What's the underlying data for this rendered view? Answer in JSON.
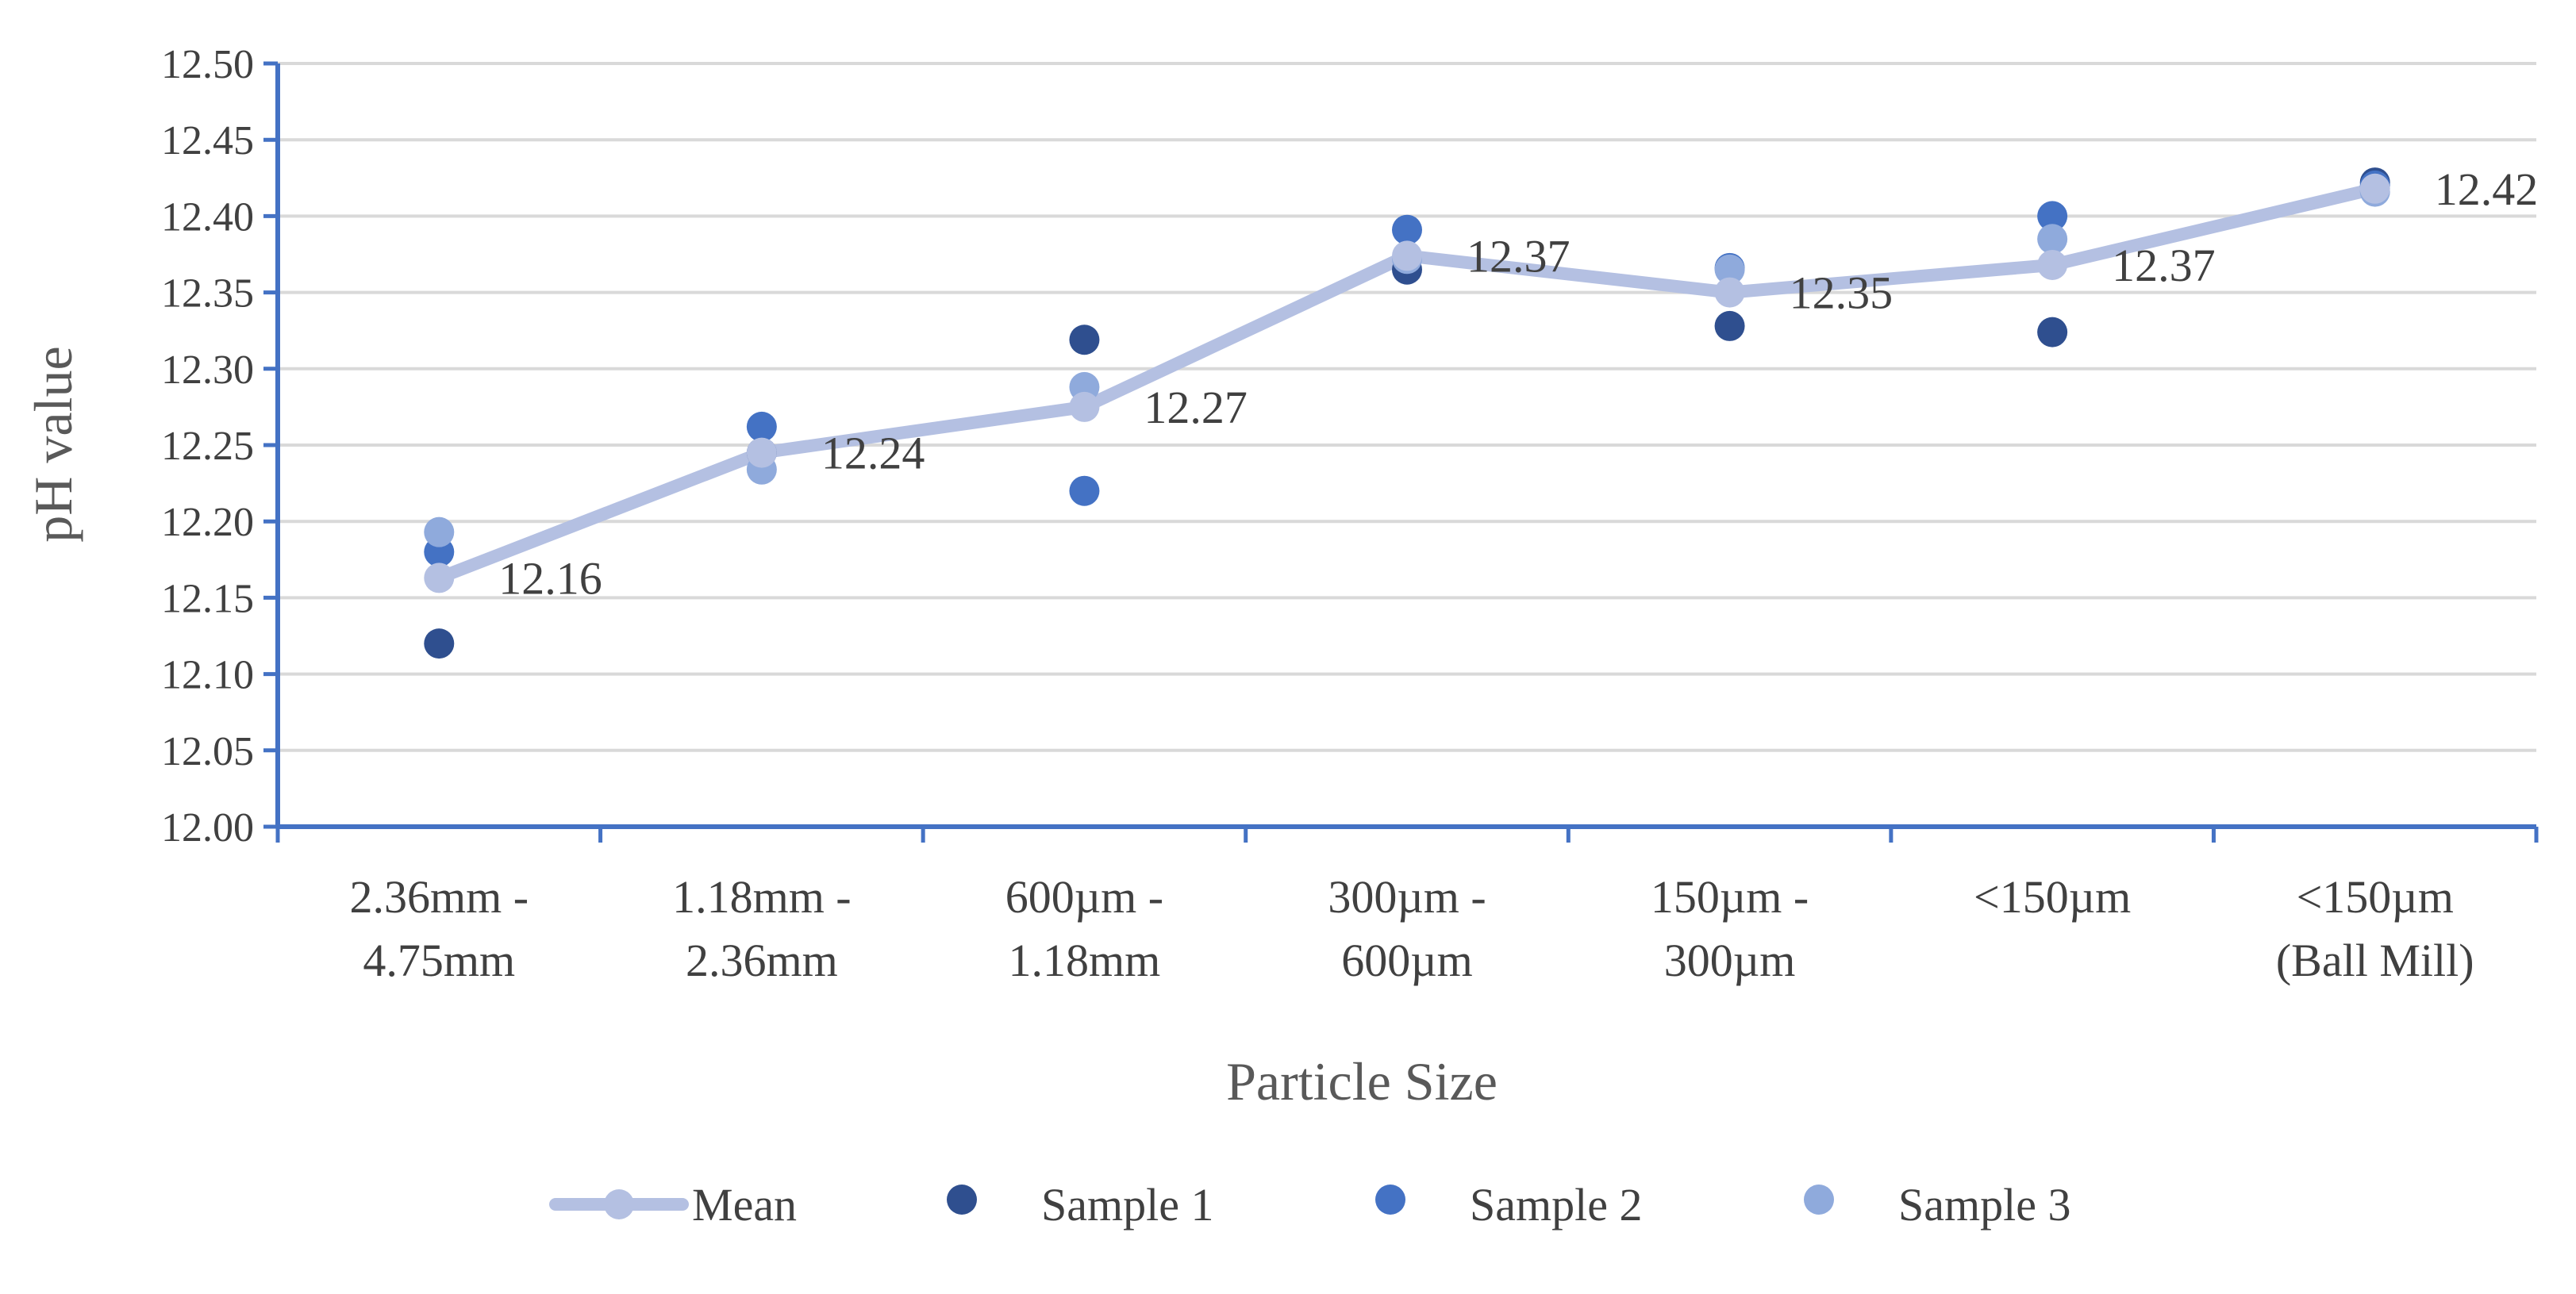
{
  "chart_data": {
    "type": "line",
    "title": "",
    "xlabel": "Particle Size",
    "ylabel": "pH value",
    "ylim": [
      12.0,
      12.5
    ],
    "ytick_step": 0.05,
    "grid": true,
    "legend_position": "bottom",
    "categories": [
      [
        "2.36mm -",
        "4.75mm"
      ],
      [
        "1.18mm -",
        "2.36mm"
      ],
      [
        "600µm -",
        "1.18mm"
      ],
      [
        "300µm -",
        "600µm"
      ],
      [
        "150µm -",
        "300µm"
      ],
      [
        "<150µm"
      ],
      [
        "<150µm",
        "(Ball Mill)"
      ]
    ],
    "data_labels": [
      "12.16",
      "12.24",
      "12.27",
      "12.37",
      "12.35",
      "12.37",
      "12.42"
    ],
    "series": [
      {
        "name": "Mean",
        "kind": "line",
        "color": "#b4c0e2",
        "values": [
          12.163,
          12.245,
          12.275,
          12.374,
          12.35,
          12.368,
          12.418
        ]
      },
      {
        "name": "Sample 1",
        "kind": "scatter",
        "color": "#2f4f8f",
        "values": [
          12.12,
          12.245,
          12.319,
          12.365,
          12.328,
          12.324,
          12.422
        ]
      },
      {
        "name": "Sample 2",
        "kind": "scatter",
        "color": "#4472c4",
        "values": [
          12.18,
          12.262,
          12.22,
          12.391,
          12.366,
          12.4,
          12.42
        ]
      },
      {
        "name": "Sample 3",
        "kind": "scatter",
        "color": "#8faadc",
        "values": [
          12.193,
          12.234,
          12.288,
          12.372,
          12.365,
          12.385,
          12.416
        ]
      }
    ],
    "axis_color": "#4472c4",
    "grid_color": "#d9d9d9"
  }
}
